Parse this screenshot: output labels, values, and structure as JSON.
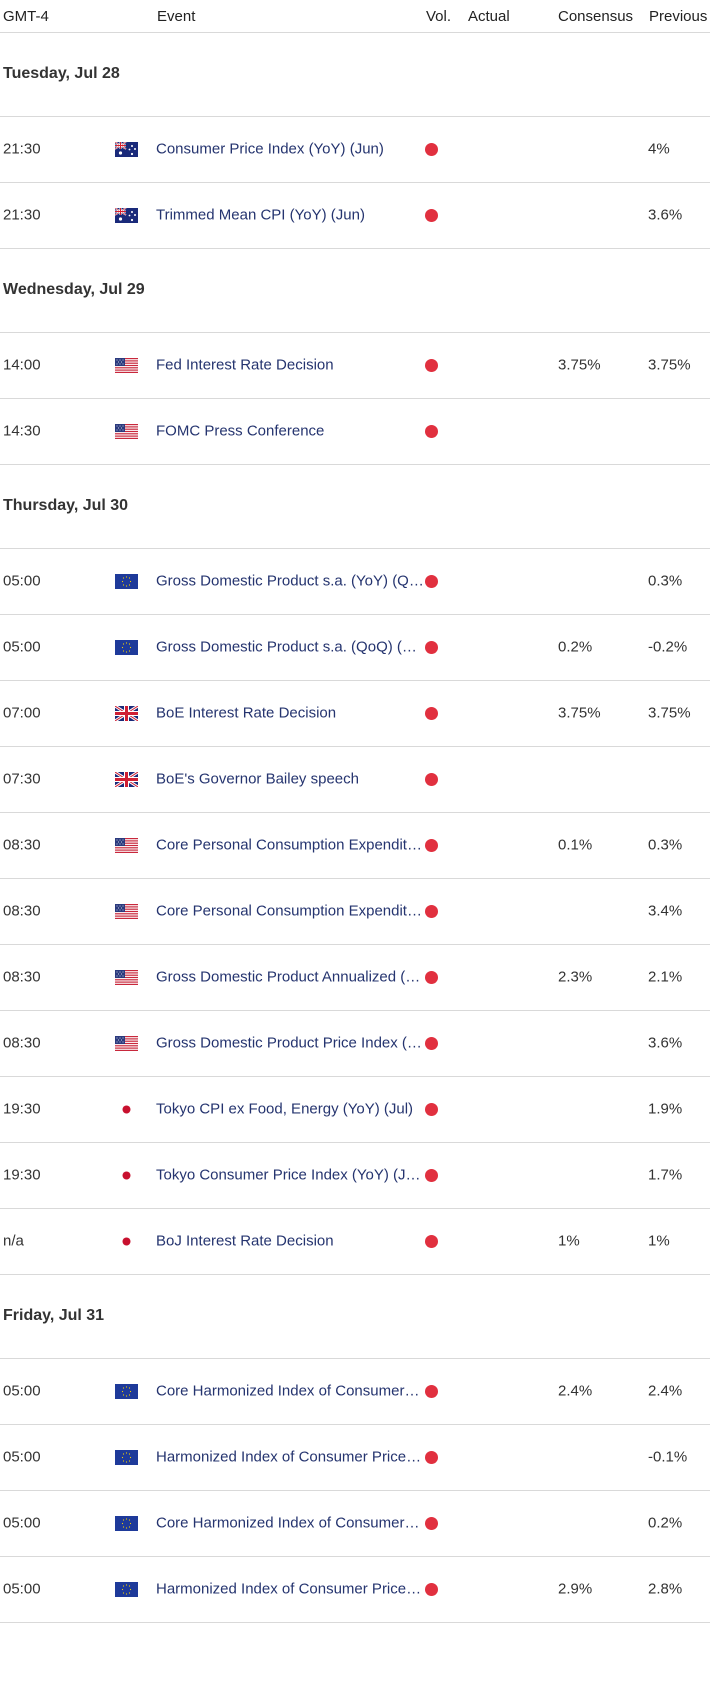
{
  "header": {
    "timezone": "GMT-4",
    "event": "Event",
    "vol": "Vol.",
    "actual": "Actual",
    "consensus": "Consensus",
    "previous": "Previous"
  },
  "colors": {
    "impact_high": "#e1303f",
    "event_text": "#25346f"
  },
  "days": [
    {
      "label": "Tuesday, Jul 28",
      "events": [
        {
          "time": "21:30",
          "flag": "au-flag-icon",
          "event": "Consumer Price Index (YoY) (Jun)",
          "consensus": "",
          "previous": "4%"
        },
        {
          "time": "21:30",
          "flag": "au-flag-icon",
          "event": "Trimmed Mean CPI (YoY) (Jun)",
          "consensus": "",
          "previous": "3.6%"
        }
      ]
    },
    {
      "label": "Wednesday, Jul 29",
      "events": [
        {
          "time": "14:00",
          "flag": "us-flag-icon",
          "event": "Fed Interest Rate Decision",
          "consensus": "3.75%",
          "previous": "3.75%"
        },
        {
          "time": "14:30",
          "flag": "us-flag-icon",
          "event": "FOMC Press Conference",
          "consensus": "",
          "previous": ""
        }
      ]
    },
    {
      "label": "Thursday, Jul 30",
      "events": [
        {
          "time": "05:00",
          "flag": "eu-flag-icon",
          "event": "Gross Domestic Product s.a. (YoY) (Q…",
          "consensus": "",
          "previous": "0.3%"
        },
        {
          "time": "05:00",
          "flag": "eu-flag-icon",
          "event": "Gross Domestic Product s.a. (QoQ) (…",
          "consensus": "0.2%",
          "previous": "-0.2%"
        },
        {
          "time": "07:00",
          "flag": "uk-flag-icon",
          "event": "BoE Interest Rate Decision",
          "consensus": "3.75%",
          "previous": "3.75%"
        },
        {
          "time": "07:30",
          "flag": "uk-flag-icon",
          "event": "BoE's Governor Bailey speech",
          "consensus": "",
          "previous": ""
        },
        {
          "time": "08:30",
          "flag": "us-flag-icon",
          "event": "Core Personal Consumption Expendit…",
          "consensus": "0.1%",
          "previous": "0.3%"
        },
        {
          "time": "08:30",
          "flag": "us-flag-icon",
          "event": "Core Personal Consumption Expendit…",
          "consensus": "",
          "previous": "3.4%"
        },
        {
          "time": "08:30",
          "flag": "us-flag-icon",
          "event": "Gross Domestic Product Annualized (…",
          "consensus": "2.3%",
          "previous": "2.1%"
        },
        {
          "time": "08:30",
          "flag": "us-flag-icon",
          "event": "Gross Domestic Product Price Index (…",
          "consensus": "",
          "previous": "3.6%"
        },
        {
          "time": "19:30",
          "flag": "jp-flag-icon",
          "event": "Tokyo CPI ex Food, Energy (YoY) (Jul)",
          "consensus": "",
          "previous": "1.9%"
        },
        {
          "time": "19:30",
          "flag": "jp-flag-icon",
          "event": "Tokyo Consumer Price Index (YoY) (J…",
          "consensus": "",
          "previous": "1.7%"
        },
        {
          "time": "n/a",
          "flag": "jp-flag-icon",
          "event": "BoJ Interest Rate Decision",
          "consensus": "1%",
          "previous": "1%"
        }
      ]
    },
    {
      "label": "Friday, Jul 31",
      "events": [
        {
          "time": "05:00",
          "flag": "eu-flag-icon",
          "event": "Core Harmonized Index of Consumer…",
          "consensus": "2.4%",
          "previous": "2.4%"
        },
        {
          "time": "05:00",
          "flag": "eu-flag-icon",
          "event": "Harmonized Index of Consumer Price…",
          "consensus": "",
          "previous": "-0.1%"
        },
        {
          "time": "05:00",
          "flag": "eu-flag-icon",
          "event": "Core Harmonized Index of Consumer…",
          "consensus": "",
          "previous": "0.2%"
        },
        {
          "time": "05:00",
          "flag": "eu-flag-icon",
          "event": "Harmonized Index of Consumer Price…",
          "consensus": "2.9%",
          "previous": "2.8%"
        }
      ]
    }
  ]
}
